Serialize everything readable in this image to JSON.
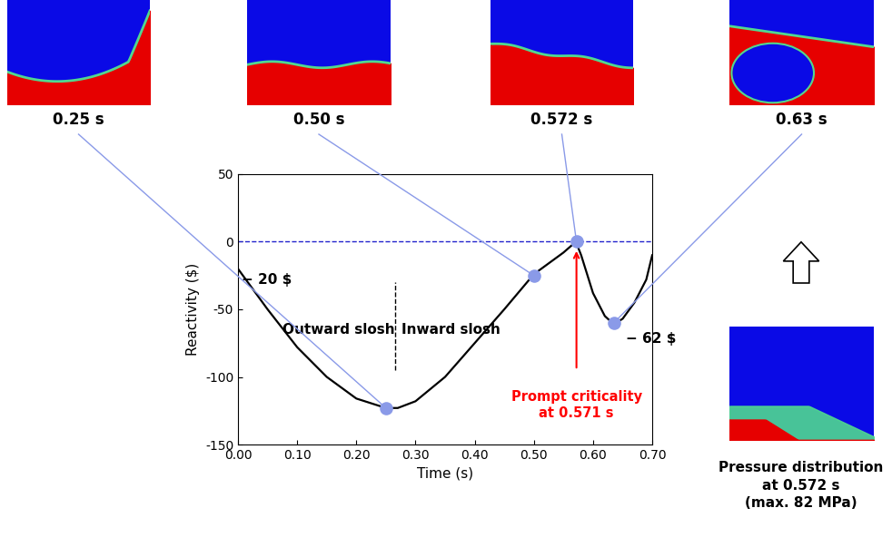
{
  "chart_data": {
    "type": "line",
    "x": [
      0.0,
      0.05,
      0.1,
      0.15,
      0.2,
      0.25,
      0.27,
      0.3,
      0.35,
      0.4,
      0.45,
      0.5,
      0.55,
      0.571,
      0.58,
      0.6,
      0.62,
      0.635,
      0.65,
      0.67,
      0.69,
      0.7
    ],
    "values": [
      -20,
      -50,
      -78,
      -100,
      -116,
      -123,
      -123,
      -118,
      -100,
      -75,
      -50,
      -24,
      -8,
      0,
      -10,
      -38,
      -55,
      -61,
      -57,
      -45,
      -28,
      -10
    ],
    "color": "#000000",
    "xlabel": "Time (s)",
    "ylabel": "Reactivity ($)",
    "xlim": [
      0,
      0.7
    ],
    "ylim": [
      -150,
      50
    ],
    "xticks": [
      {
        "value": 0,
        "label": "0.00"
      },
      {
        "value": 0.1,
        "label": "0.10"
      },
      {
        "value": 0.2,
        "label": "0.20"
      },
      {
        "value": 0.3,
        "label": "0.30"
      },
      {
        "value": 0.4,
        "label": "0.40"
      },
      {
        "value": 0.5,
        "label": "0.50"
      },
      {
        "value": 0.6,
        "label": "0.60"
      },
      {
        "value": 0.7,
        "label": "0.70"
      }
    ],
    "yticks": [
      -150,
      -100,
      -50,
      0,
      50
    ],
    "reference_y": 0,
    "divider_x": 0.265,
    "divider_y": [
      -95,
      -30
    ],
    "highlights": {
      "x": [
        0.25,
        0.5,
        0.572,
        0.635
      ],
      "values": [
        -123,
        -25,
        0,
        -60
      ],
      "labels": [
        "0.25 s",
        "0.50 s",
        "0.572 s",
        "0.63 s"
      ]
    },
    "annotations": {
      "start": "− 20 $",
      "outward": "Outward slosh",
      "inward": "Inward slosh",
      "prompt": "Prompt criticality\nat 0.571 s",
      "minimum": "− 62 $",
      "pressure": "Pressure distribution\nat 0.572 s\n(max. 82 MPa)"
    }
  }
}
